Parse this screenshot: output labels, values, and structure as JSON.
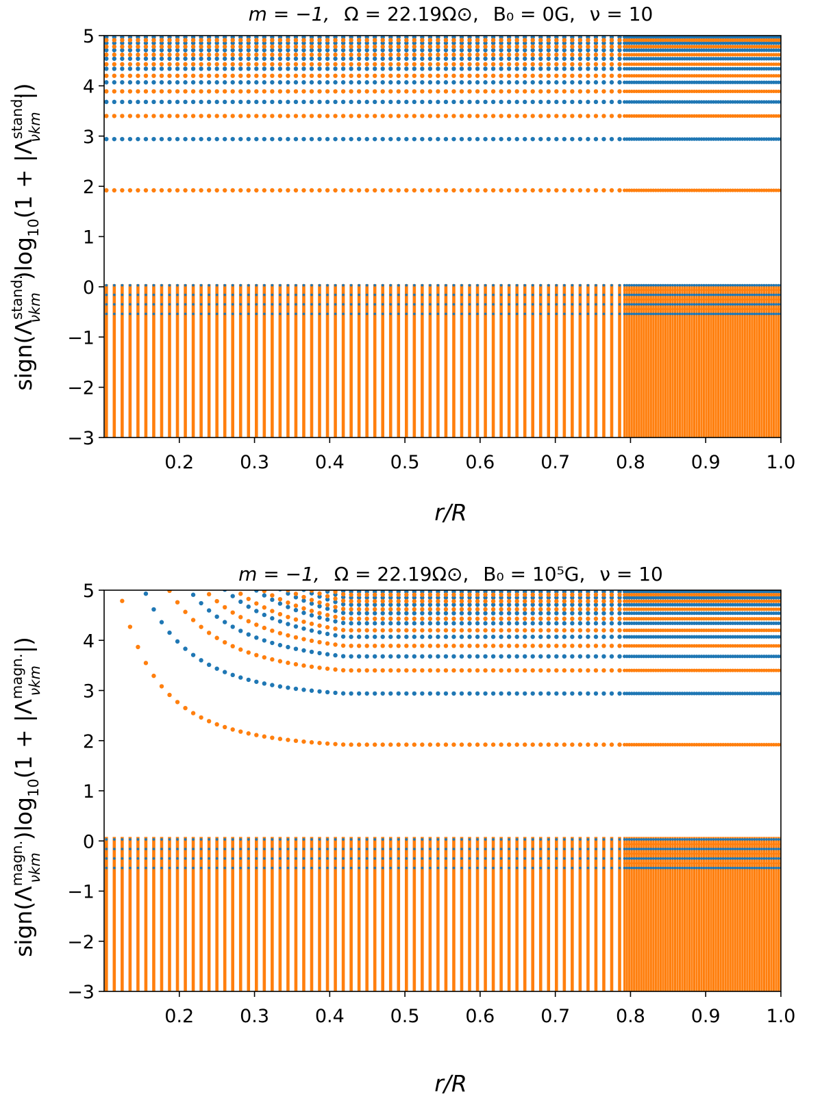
{
  "chart_data": [
    {
      "type": "scatter",
      "title_parts": {
        "m": "m = −1,",
        "omega": "Ω = 22.19Ω⊙,",
        "b0": "B₀ = 0G,",
        "nu": "ν = 10"
      },
      "xlabel": "r/R",
      "ylabel": "sign(Λ^stand._νkm) log10(1 + |Λ^stand._νkm|)",
      "ylabel_parts": {
        "pre": "sign(Λ",
        "sup": "stand.",
        "sub": "νkm",
        "mid": ")log",
        "ten": "10",
        "post": "(1 + |Λ",
        "sup2": "stand.",
        "sub2": "νkm",
        "end": "|)"
      },
      "xlim": [
        0.1,
        1.0
      ],
      "ylim": [
        -3,
        5
      ],
      "xticks": [
        "0.2",
        "0.3",
        "0.4",
        "0.5",
        "0.6",
        "0.7",
        "0.8",
        "0.9",
        "1.0"
      ],
      "yticks": [
        "−3",
        "−2",
        "−1",
        "0",
        "1",
        "2",
        "3",
        "4",
        "5"
      ],
      "magnetic": false,
      "series": [
        {
          "name": "positive eigenvalues (blue)",
          "color": "#1f77b4",
          "values": [
            2.94,
            3.68,
            4.07,
            4.34,
            4.54,
            4.71,
            4.85,
            4.97
          ]
        },
        {
          "name": "positive eigenvalues (orange)",
          "color": "#ff7f0e",
          "values": [
            1.92,
            3.4,
            3.89,
            4.2,
            4.43,
            4.62,
            4.78,
            4.91
          ]
        },
        {
          "name": "negative eigenvalues",
          "color": "#ff7f0e",
          "range": [
            -3,
            0.05
          ]
        }
      ]
    },
    {
      "type": "scatter",
      "title_parts": {
        "m": "m = −1,",
        "omega": "Ω = 22.19Ω⊙,",
        "b0": "B₀ = 10⁵G,",
        "nu": "ν = 10"
      },
      "xlabel": "r/R",
      "ylabel": "sign(Λ^magn._νkm) log10(1 + |Λ^magn._νkm|)",
      "ylabel_parts": {
        "pre": "sign(Λ",
        "sup": "magn.",
        "sub": "νkm",
        "mid": ")log",
        "ten": "10",
        "post": "(1 + |Λ",
        "sup2": "magn.",
        "sub2": "νkm",
        "end": "|)"
      },
      "xlim": [
        0.1,
        1.0
      ],
      "ylim": [
        -3,
        5
      ],
      "xticks": [
        "0.2",
        "0.3",
        "0.4",
        "0.5",
        "0.6",
        "0.7",
        "0.8",
        "0.9",
        "1.0"
      ],
      "yticks": [
        "−3",
        "−2",
        "−1",
        "0",
        "1",
        "2",
        "3",
        "4",
        "5"
      ],
      "magnetic": true,
      "series": [
        {
          "name": "positive eigenvalues (blue)",
          "color": "#1f77b4",
          "values": [
            2.94,
            3.68,
            4.07,
            4.34,
            4.54,
            4.71,
            4.85,
            4.97
          ]
        },
        {
          "name": "positive eigenvalues (orange)",
          "color": "#ff7f0e",
          "values": [
            1.92,
            3.4,
            3.89,
            4.2,
            4.43,
            4.62,
            4.78,
            4.91
          ]
        },
        {
          "name": "negative eigenvalues",
          "color": "#ff7f0e",
          "range": [
            -3,
            0.08
          ]
        }
      ]
    }
  ]
}
